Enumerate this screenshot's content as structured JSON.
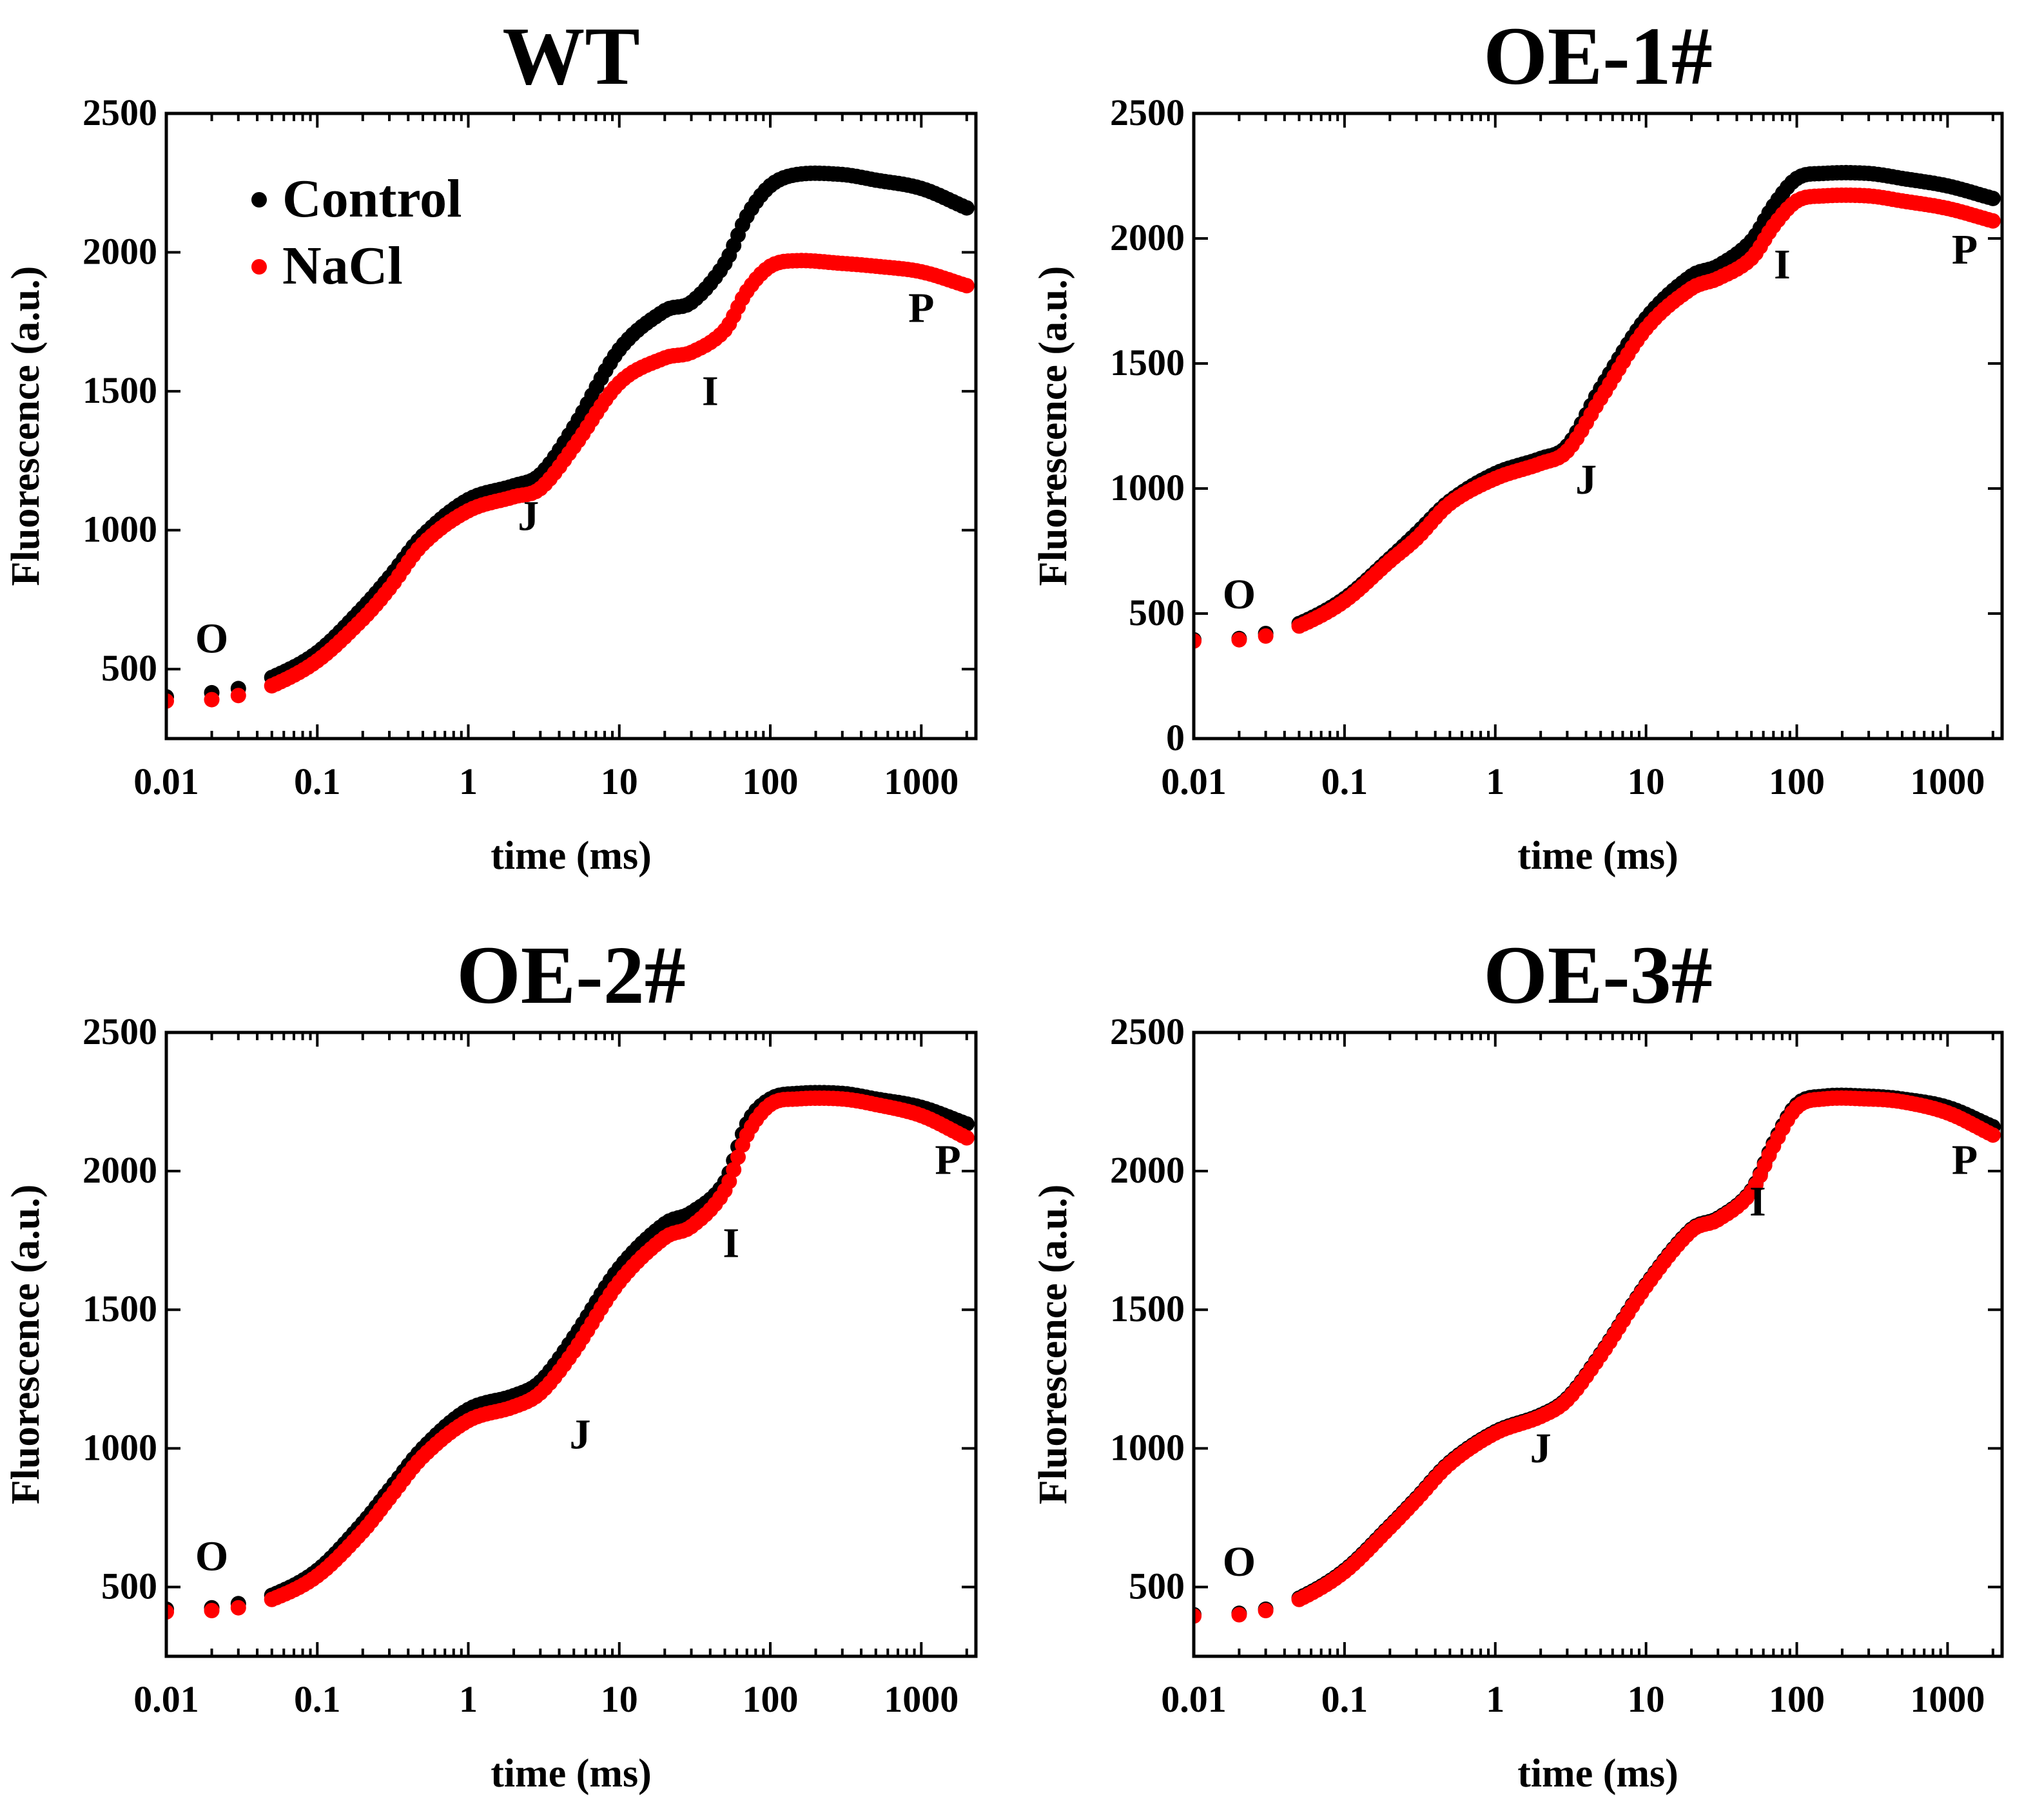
{
  "chart_data": [
    {
      "type": "scatter",
      "title": "WT",
      "xlabel": "time (ms)",
      "ylabel": "Fluorescence (a.u.)",
      "xscale": "log",
      "xlim": [
        0.01,
        2300
      ],
      "ylim": [
        250,
        2500
      ],
      "xticks": [
        0.01,
        0.1,
        1,
        10,
        100,
        1000
      ],
      "xtick_labels": [
        "0.01",
        "0.1",
        "1",
        "10",
        "100",
        "1000"
      ],
      "yticks": [
        500,
        1000,
        1500,
        2000,
        2500
      ],
      "ytick_labels": [
        "500",
        "1000",
        "1500",
        "2000",
        "2500"
      ],
      "legend": {
        "position": "upper-left",
        "entries": [
          "Control",
          "NaCl"
        ]
      },
      "annotations": [
        {
          "text": "O",
          "x": 0.02,
          "y": 560
        },
        {
          "text": "J",
          "x": 2.5,
          "y": 1000
        },
        {
          "text": "I",
          "x": 40,
          "y": 1450
        },
        {
          "text": "P",
          "x": 1000,
          "y": 1750
        }
      ],
      "series": [
        {
          "name": "Control",
          "color": "#000000",
          "x": [
            0.01,
            0.02,
            0.03,
            0.05,
            0.1,
            0.2,
            0.3,
            0.5,
            1,
            2,
            3,
            5,
            10,
            20,
            30,
            50,
            70,
            100,
            150,
            300,
            500,
            1000,
            2000
          ],
          "y": [
            400,
            415,
            430,
            470,
            560,
            720,
            830,
            980,
            1110,
            1160,
            1200,
            1370,
            1650,
            1790,
            1820,
            1960,
            2130,
            2240,
            2280,
            2280,
            2260,
            2230,
            2160
          ]
        },
        {
          "name": "NaCl",
          "color": "#ff0000",
          "x": [
            0.01,
            0.02,
            0.03,
            0.05,
            0.1,
            0.2,
            0.3,
            0.5,
            1,
            2,
            3,
            5,
            10,
            20,
            30,
            50,
            70,
            100,
            150,
            300,
            500,
            1000,
            2000
          ],
          "y": [
            385,
            390,
            405,
            440,
            530,
            680,
            790,
            950,
            1070,
            1120,
            1150,
            1300,
            1530,
            1620,
            1640,
            1720,
            1860,
            1950,
            1970,
            1960,
            1950,
            1930,
            1880
          ]
        }
      ]
    },
    {
      "type": "scatter",
      "title": "OE-1#",
      "xlabel": "time (ms)",
      "ylabel": "Fluorescence (a.u.)",
      "xscale": "log",
      "xlim": [
        0.01,
        2300
      ],
      "ylim": [
        0,
        2500
      ],
      "xticks": [
        0.01,
        0.1,
        1,
        10,
        100,
        1000
      ],
      "xtick_labels": [
        "0.01",
        "0.1",
        "1",
        "10",
        "100",
        "1000"
      ],
      "yticks": [
        0,
        500,
        1000,
        1500,
        2000,
        2500
      ],
      "ytick_labels": [
        "0",
        "500",
        "1000",
        "1500",
        "2000",
        "2500"
      ],
      "annotations": [
        {
          "text": "O",
          "x": 0.02,
          "y": 520
        },
        {
          "text": "J",
          "x": 4,
          "y": 980
        },
        {
          "text": "I",
          "x": 80,
          "y": 1840
        },
        {
          "text": "P",
          "x": 1300,
          "y": 1900
        }
      ],
      "series": [
        {
          "name": "Control",
          "color": "#000000",
          "x": [
            0.01,
            0.02,
            0.03,
            0.05,
            0.1,
            0.2,
            0.3,
            0.5,
            1,
            2,
            3,
            5,
            10,
            20,
            30,
            50,
            70,
            100,
            150,
            300,
            500,
            1000,
            2000
          ],
          "y": [
            395,
            400,
            420,
            460,
            560,
            720,
            820,
            950,
            1060,
            1120,
            1170,
            1400,
            1680,
            1850,
            1890,
            1990,
            2130,
            2240,
            2260,
            2260,
            2240,
            2210,
            2160
          ]
        },
        {
          "name": "NaCl",
          "color": "#ff0000",
          "x": [
            0.01,
            0.02,
            0.03,
            0.05,
            0.1,
            0.2,
            0.3,
            0.5,
            1,
            2,
            3,
            5,
            10,
            20,
            30,
            50,
            70,
            100,
            150,
            300,
            500,
            1000,
            2000
          ],
          "y": [
            390,
            395,
            410,
            450,
            550,
            710,
            800,
            940,
            1040,
            1100,
            1150,
            1360,
            1640,
            1800,
            1840,
            1920,
            2050,
            2150,
            2170,
            2170,
            2150,
            2120,
            2070
          ]
        }
      ]
    },
    {
      "type": "scatter",
      "title": "OE-2#",
      "xlabel": "time (ms)",
      "ylabel": "Fluorescence (a.u.)",
      "xscale": "log",
      "xlim": [
        0.01,
        2300
      ],
      "ylim": [
        250,
        2500
      ],
      "xticks": [
        0.01,
        0.1,
        1,
        10,
        100,
        1000
      ],
      "xtick_labels": [
        "0.01",
        "0.1",
        "1",
        "10",
        "100",
        "1000"
      ],
      "yticks": [
        500,
        1000,
        1500,
        2000,
        2500
      ],
      "ytick_labels": [
        "500",
        "1000",
        "1500",
        "2000",
        "2500"
      ],
      "annotations": [
        {
          "text": "O",
          "x": 0.02,
          "y": 560
        },
        {
          "text": "J",
          "x": 5.5,
          "y": 1000
        },
        {
          "text": "I",
          "x": 55,
          "y": 1690
        },
        {
          "text": "P",
          "x": 1500,
          "y": 1990
        }
      ],
      "series": [
        {
          "name": "Control",
          "color": "#000000",
          "x": [
            0.01,
            0.02,
            0.03,
            0.05,
            0.1,
            0.2,
            0.3,
            0.5,
            1,
            2,
            3,
            5,
            10,
            20,
            30,
            50,
            70,
            100,
            150,
            300,
            500,
            1000,
            2000
          ],
          "y": [
            420,
            425,
            440,
            470,
            560,
            730,
            850,
            1000,
            1140,
            1190,
            1240,
            1400,
            1650,
            1810,
            1850,
            1960,
            2170,
            2260,
            2280,
            2280,
            2260,
            2230,
            2170
          ]
        },
        {
          "name": "NaCl",
          "color": "#ff0000",
          "x": [
            0.01,
            0.02,
            0.03,
            0.05,
            0.1,
            0.2,
            0.3,
            0.5,
            1,
            2,
            3,
            5,
            10,
            20,
            30,
            50,
            70,
            100,
            150,
            300,
            500,
            1000,
            2000
          ],
          "y": [
            410,
            415,
            425,
            455,
            540,
            700,
            820,
            970,
            1100,
            1150,
            1200,
            1350,
            1600,
            1760,
            1800,
            1930,
            2130,
            2240,
            2260,
            2260,
            2240,
            2200,
            2120
          ]
        }
      ]
    },
    {
      "type": "scatter",
      "title": "OE-3#",
      "xlabel": "time (ms)",
      "ylabel": "Fluorescence (a.u.)",
      "xscale": "log",
      "xlim": [
        0.01,
        2300
      ],
      "ylim": [
        250,
        2500
      ],
      "xticks": [
        0.01,
        0.1,
        1,
        10,
        100,
        1000
      ],
      "xtick_labels": [
        "0.01",
        "0.1",
        "1",
        "10",
        "100",
        "1000"
      ],
      "yticks": [
        500,
        1000,
        1500,
        2000,
        2500
      ],
      "ytick_labels": [
        "500",
        "1000",
        "1500",
        "2000",
        "2500"
      ],
      "annotations": [
        {
          "text": "O",
          "x": 0.02,
          "y": 540
        },
        {
          "text": "J",
          "x": 2,
          "y": 950
        },
        {
          "text": "I",
          "x": 55,
          "y": 1840
        },
        {
          "text": "P",
          "x": 1300,
          "y": 1990
        }
      ],
      "series": [
        {
          "name": "Control",
          "color": "#000000",
          "x": [
            0.01,
            0.02,
            0.03,
            0.05,
            0.1,
            0.2,
            0.3,
            0.5,
            1,
            2,
            3,
            5,
            10,
            20,
            30,
            50,
            70,
            100,
            150,
            300,
            500,
            1000,
            2000
          ],
          "y": [
            400,
            405,
            420,
            460,
            560,
            720,
            820,
            950,
            1060,
            1120,
            1180,
            1340,
            1590,
            1790,
            1830,
            1930,
            2100,
            2240,
            2270,
            2270,
            2260,
            2230,
            2160
          ]
        },
        {
          "name": "NaCl",
          "color": "#ff0000",
          "x": [
            0.01,
            0.02,
            0.03,
            0.05,
            0.1,
            0.2,
            0.3,
            0.5,
            1,
            2,
            3,
            5,
            10,
            20,
            30,
            50,
            70,
            100,
            150,
            300,
            500,
            1000,
            2000
          ],
          "y": [
            395,
            400,
            415,
            455,
            555,
            715,
            815,
            945,
            1055,
            1115,
            1175,
            1335,
            1585,
            1785,
            1825,
            1925,
            2090,
            2230,
            2260,
            2260,
            2250,
            2210,
            2130
          ]
        }
      ]
    }
  ]
}
